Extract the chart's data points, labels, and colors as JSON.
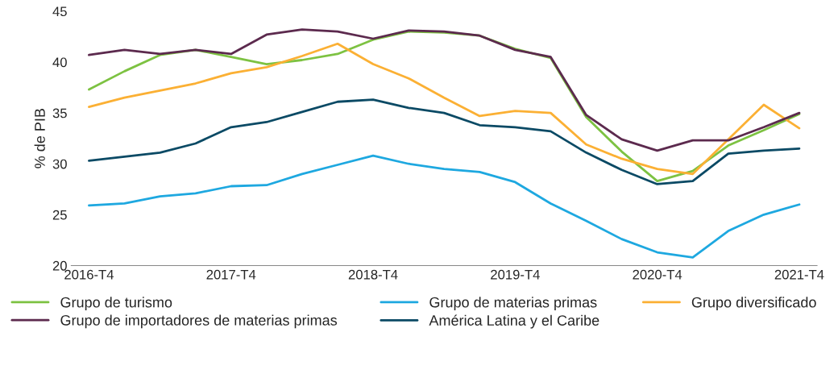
{
  "chart_data": {
    "type": "line",
    "ylabel": "% de PIB",
    "categories": [
      "2016-T4",
      null,
      null,
      null,
      "2017-T4",
      null,
      null,
      null,
      "2018-T4",
      null,
      null,
      null,
      "2019-T4",
      null,
      null,
      null,
      "2020-T4",
      null,
      null,
      null,
      "2021-T4"
    ],
    "series": [
      {
        "name": "Grupo de turismo",
        "color": "#7dc242",
        "values": [
          37.3,
          39.1,
          40.7,
          41.2,
          40.5,
          39.8,
          40.2,
          40.8,
          42.2,
          43.0,
          42.9,
          42.6,
          41.3,
          40.4,
          34.6,
          31.2,
          28.3,
          29.3,
          31.8,
          33.3,
          34.9
        ]
      },
      {
        "name": "Grupo de materias primas",
        "color": "#1ea8e0",
        "values": [
          25.9,
          26.1,
          26.8,
          27.1,
          27.8,
          27.9,
          29.0,
          29.9,
          30.8,
          30.0,
          29.5,
          29.2,
          28.2,
          26.1,
          24.4,
          22.6,
          21.3,
          20.8,
          23.4,
          25.0,
          26.0
        ]
      },
      {
        "name": "Grupo diversificado",
        "color": "#fbb034",
        "values": [
          35.6,
          36.5,
          37.2,
          37.9,
          38.9,
          39.5,
          40.6,
          41.8,
          39.8,
          38.4,
          36.5,
          34.7,
          35.2,
          35.0,
          31.9,
          30.5,
          29.5,
          29.0,
          32.4,
          35.8,
          33.5
        ]
      },
      {
        "name": "Grupo de importadores de materias primas",
        "color": "#5c2a4e",
        "values": [
          40.7,
          41.2,
          40.8,
          41.2,
          40.8,
          42.7,
          43.2,
          43.0,
          42.3,
          43.1,
          43.0,
          42.6,
          41.2,
          40.5,
          34.8,
          32.4,
          31.3,
          32.3,
          32.3,
          33.6,
          35.0
        ]
      },
      {
        "name": "América Latina y el Caribe",
        "color": "#0b4a65",
        "values": [
          30.3,
          30.7,
          31.1,
          32.0,
          33.6,
          34.1,
          35.1,
          36.1,
          36.3,
          35.5,
          35.0,
          33.8,
          33.6,
          33.2,
          31.1,
          29.4,
          28.0,
          28.3,
          31.0,
          31.3,
          31.5
        ]
      }
    ],
    "ylim": [
      20,
      45
    ],
    "yticks": [
      20,
      25,
      30,
      35,
      40,
      45
    ],
    "grid": false,
    "legend": "bottom",
    "marker": "none",
    "line_style": "solid"
  }
}
